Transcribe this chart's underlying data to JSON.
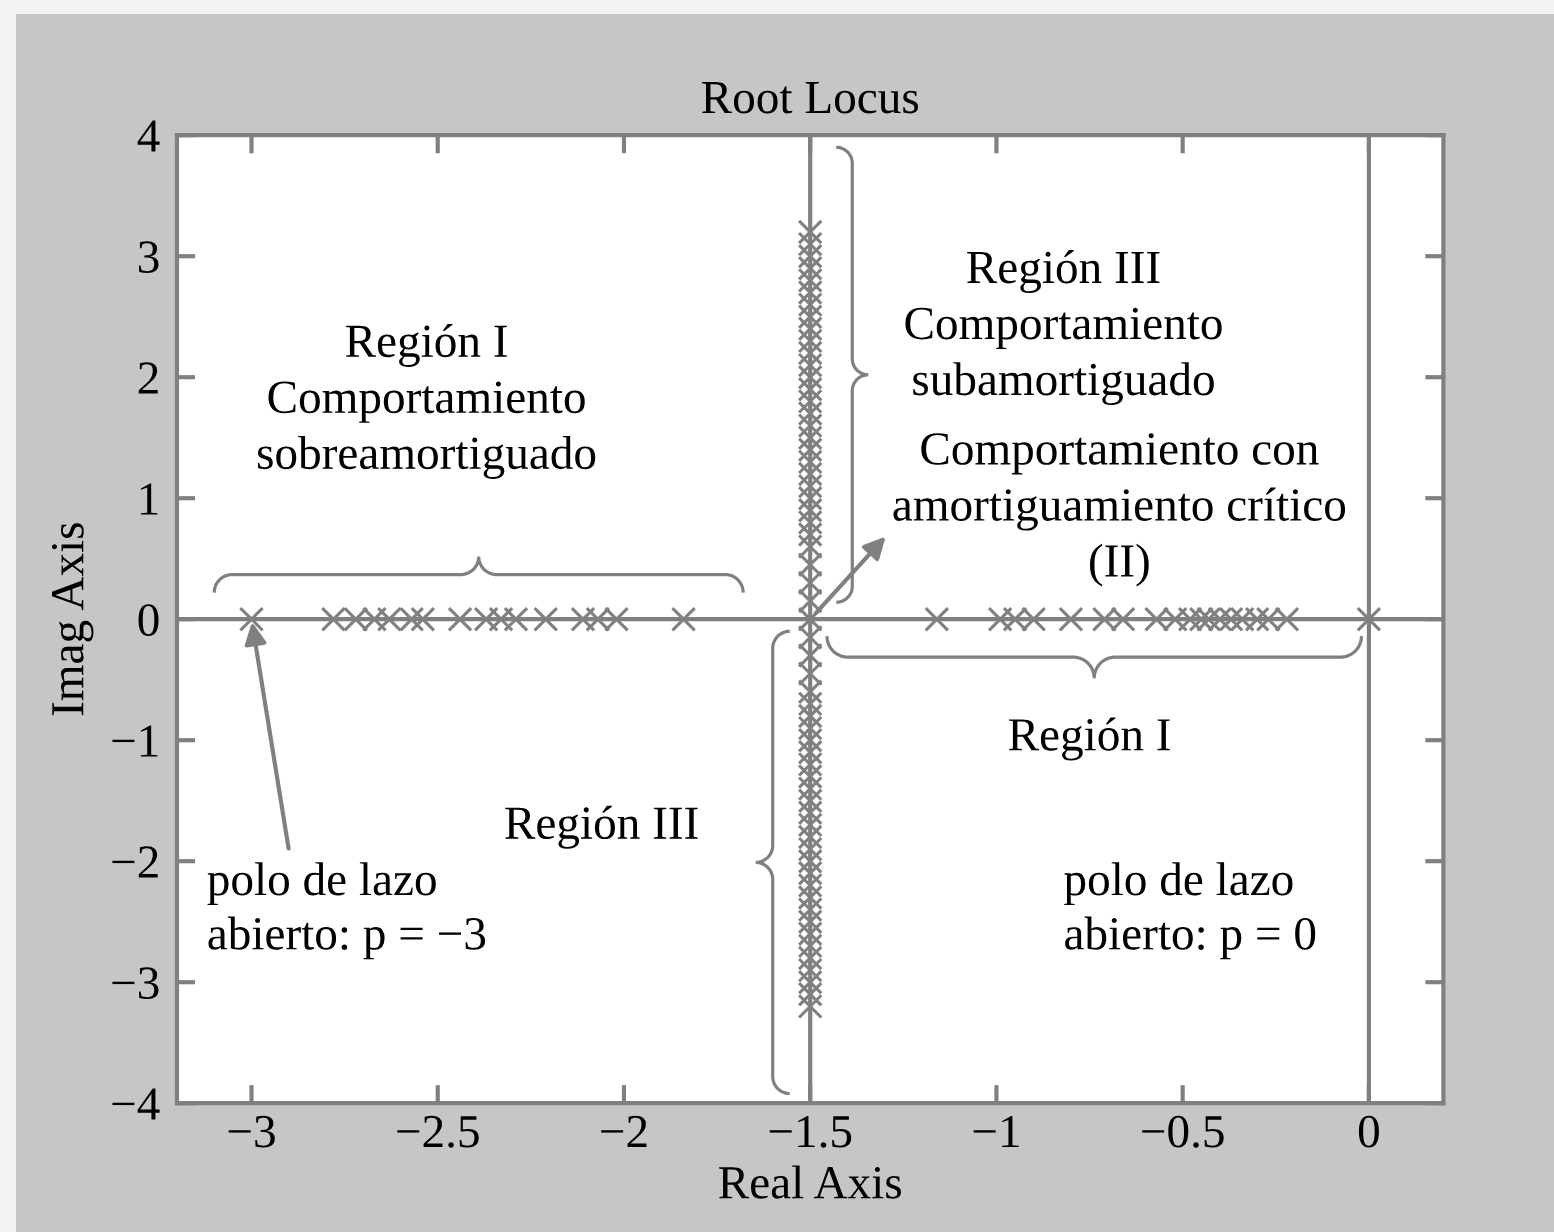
{
  "chart_data": {
    "type": "scatter",
    "title": "Root Locus",
    "xlabel": "Real Axis",
    "ylabel": "Imag Axis",
    "xlim": [
      -3.2,
      0.2
    ],
    "ylim": [
      -4,
      4
    ],
    "xticks": [
      -3,
      -2.5,
      -2,
      -1.5,
      -1,
      -0.5,
      0
    ],
    "yticks": [
      -4,
      -3,
      -2,
      -1,
      0,
      1,
      2,
      3,
      4
    ],
    "marker": "cross",
    "series": [
      {
        "color": "#808080",
        "x": [
          -3.0,
          -2.78,
          -2.72,
          -2.67,
          -2.63,
          -2.57,
          -2.54,
          -2.44,
          -2.37,
          -2.33,
          -2.29,
          -2.21,
          -2.11,
          -2.07,
          -2.02,
          -1.84,
          -1.16,
          -0.99,
          -0.95,
          -0.9,
          -0.8,
          -0.71,
          -0.66,
          -0.57,
          -0.52,
          -0.48,
          -0.45,
          -0.43,
          -0.4,
          -0.37,
          -0.34,
          -0.3,
          -0.27,
          -0.22,
          0.0,
          -1.5,
          -1.5,
          -1.5,
          -1.5,
          -1.5,
          -1.5,
          -1.5,
          -1.5,
          -1.5,
          -1.5,
          -1.5,
          -1.5,
          -1.5,
          -1.5,
          -1.5,
          -1.5,
          -1.5,
          -1.5,
          -1.5,
          -1.5,
          -1.5,
          -1.5,
          -1.5,
          -1.5,
          -1.5,
          -1.5,
          -1.5,
          -1.5,
          -1.5,
          -1.5,
          -1.5,
          -1.5,
          -1.5,
          -1.5,
          -1.5,
          -1.5,
          -1.5,
          -1.5,
          -1.5,
          -1.5,
          -1.5,
          -1.5,
          -1.5,
          -1.5,
          -1.5,
          -1.5,
          -1.5,
          -1.5,
          -1.5,
          -1.5,
          -1.5,
          -1.5,
          -1.5,
          -1.5,
          -1.5,
          -1.5,
          -1.5,
          -1.5,
          -1.5,
          -1.5,
          -1.5
        ],
        "values": [
          0,
          0,
          0,
          0,
          0,
          0,
          0,
          0,
          0,
          0,
          0,
          0,
          0,
          0,
          0,
          0,
          0,
          0,
          0,
          0,
          0,
          0,
          0,
          0,
          0,
          0,
          0,
          0,
          0,
          0,
          0,
          0,
          0,
          0,
          0,
          0,
          0.15,
          0.3,
          0.45,
          0.6,
          0.7,
          0.8,
          0.9,
          1.0,
          1.1,
          1.2,
          1.3,
          1.4,
          1.5,
          1.6,
          1.7,
          1.8,
          1.9,
          2.0,
          2.1,
          2.2,
          2.3,
          2.4,
          2.5,
          2.6,
          2.7,
          2.8,
          2.9,
          3.0,
          3.1,
          3.2,
          -0.15,
          -0.3,
          -0.45,
          -0.6,
          -0.7,
          -0.8,
          -0.9,
          -1.0,
          -1.1,
          -1.2,
          -1.3,
          -1.4,
          -1.5,
          -1.6,
          -1.7,
          -1.8,
          -1.9,
          -2.0,
          -2.1,
          -2.2,
          -2.3,
          -2.4,
          -2.5,
          -2.6,
          -2.7,
          -2.8,
          -2.9,
          -3.0,
          -3.1,
          -3.2
        ]
      }
    ],
    "ref_lines": [
      {
        "axis": "y",
        "value": 0,
        "color": "#808080"
      },
      {
        "axis": "x",
        "value": 0,
        "color": "#808080"
      },
      {
        "axis": "x",
        "value": -1.5,
        "color": "#808080"
      }
    ],
    "annotations": [
      "Región I\nComportamiento\nsobreamortiguado",
      "Región III\nComportamiento\nsubamortiguado",
      {
        "text": "Comportamiento con\namortiguamiento crítico\n(II)",
        "x": -1.5,
        "y": 0
      },
      "Región I",
      "Región III",
      {
        "text": "polo de lazo\nabierto: p = −3",
        "x": -3,
        "y": 0
      },
      "polo de lazo\nabierto: p = 0"
    ]
  }
}
